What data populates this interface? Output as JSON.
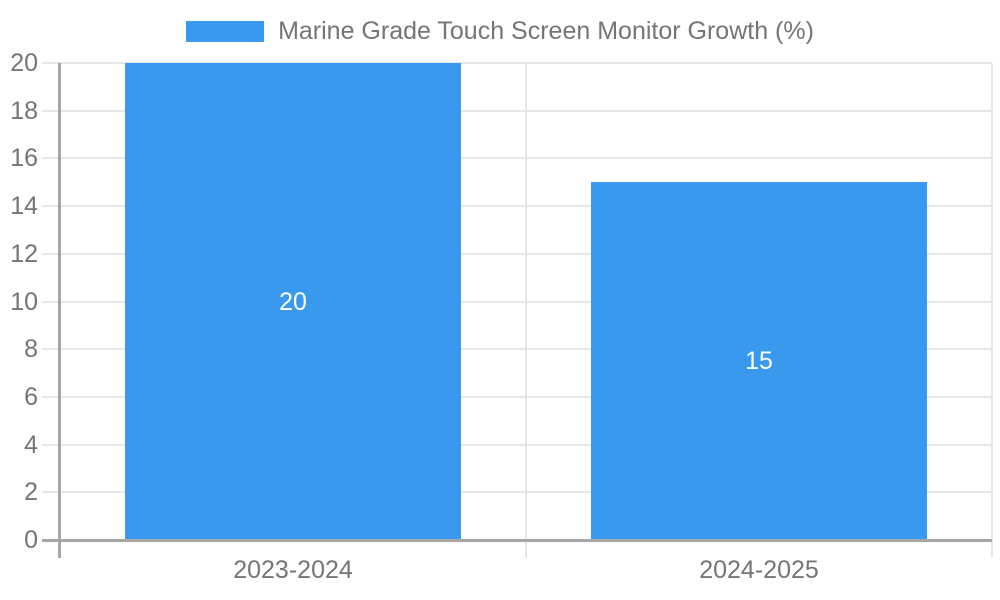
{
  "legend": {
    "label": "Marine Grade Touch Screen Monitor Growth (%)",
    "swatch": "blue-rect"
  },
  "chart_data": {
    "type": "bar",
    "title": "Marine Grade Touch Screen Monitor Growth (%)",
    "categories": [
      "2023-2024",
      "2024-2025"
    ],
    "values": [
      20,
      15
    ],
    "bar_value_labels": [
      "20",
      "15"
    ],
    "xlabel": "",
    "ylabel": "",
    "ylim": [
      0,
      20
    ],
    "yticks": [
      0,
      2,
      4,
      6,
      8,
      10,
      12,
      14,
      16,
      18,
      20
    ],
    "grid": "horizontal-light, category-boundary-vertical",
    "legend_position": "top-center"
  },
  "style": {
    "bar_color": "#3899ee",
    "text_color": "#757575",
    "gridline_color": "#e7e7e7",
    "axis_color": "#a6a6a6",
    "value_label_color": "#ffffff",
    "background_color": "#ffffff"
  }
}
